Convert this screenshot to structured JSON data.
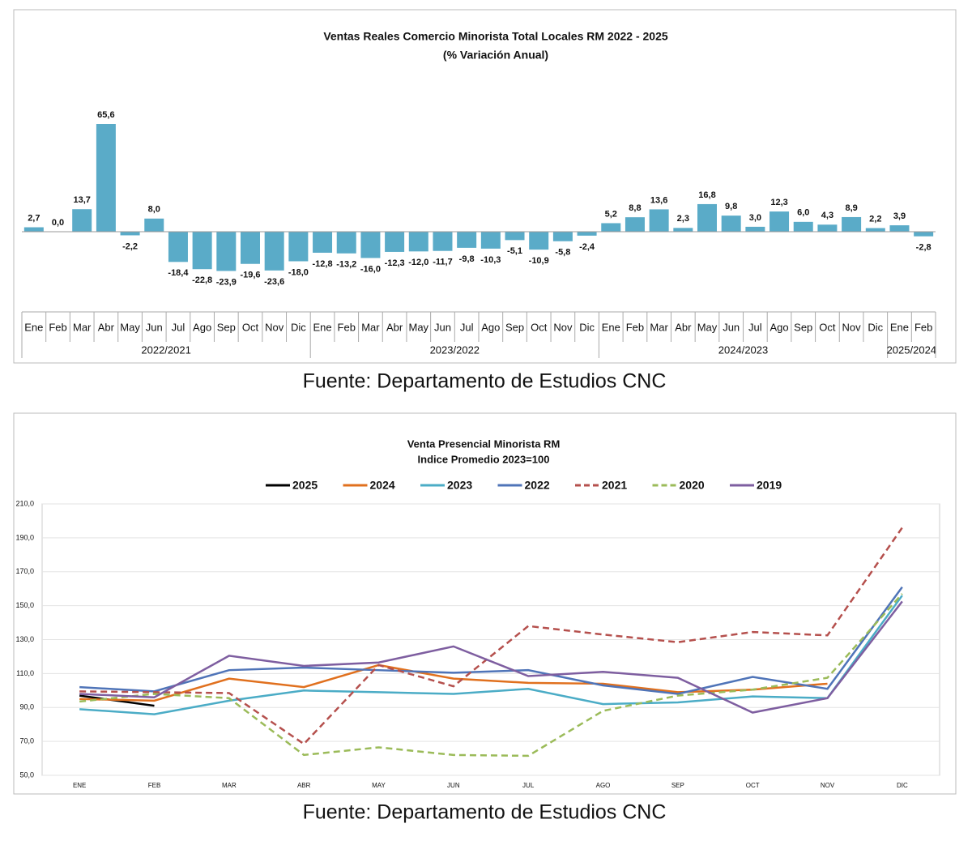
{
  "chart_data": [
    {
      "type": "bar",
      "title": "Ventas Reales Comercio Minorista  Total Locales RM 2022 - 2025",
      "subtitle": "(% Variación Anual)",
      "color": "#5aabc8",
      "groups": [
        {
          "label": "2022/2021",
          "categories": [
            "Ene",
            "Feb",
            "Mar",
            "Abr",
            "May",
            "Jun",
            "Jul",
            "Ago",
            "Sep",
            "Oct",
            "Nov",
            "Dic"
          ]
        },
        {
          "label": "2023/2022",
          "categories": [
            "Ene",
            "Feb",
            "Mar",
            "Abr",
            "May",
            "Jun",
            "Jul",
            "Ago",
            "Sep",
            "Oct",
            "Nov",
            "Dic"
          ]
        },
        {
          "label": "2024/2023",
          "categories": [
            "Ene",
            "Feb",
            "Mar",
            "Abr",
            "May",
            "Jun",
            "Jul",
            "Ago",
            "Sep",
            "Oct",
            "Nov",
            "Dic"
          ]
        },
        {
          "label": "2025/2024",
          "categories": [
            "Ene",
            "Feb"
          ]
        }
      ],
      "values": [
        2.7,
        0.0,
        13.7,
        65.6,
        -2.2,
        8.0,
        -18.4,
        -22.8,
        -23.9,
        -19.6,
        -23.6,
        -18.0,
        -12.8,
        -13.2,
        -16.0,
        -12.3,
        -12.0,
        -11.7,
        -9.8,
        -10.3,
        -5.1,
        -10.9,
        -5.8,
        -2.4,
        5.2,
        8.8,
        13.6,
        2.3,
        16.8,
        9.8,
        3.0,
        12.3,
        6.0,
        4.3,
        8.9,
        2.2,
        3.9,
        -2.8
      ],
      "value_labels": [
        "2,7",
        "0,0",
        "13,7",
        "65,6",
        "-2,2",
        "8,0",
        "-18,4",
        "-22,8",
        "-23,9",
        "-19,6",
        "-23,6",
        "-18,0",
        "-12,8",
        "-13,2",
        "-16,0",
        "-12,3",
        "-12,0",
        "-11,7",
        "-9,8",
        "-10,3",
        "-5,1",
        "-10,9",
        "-5,8",
        "-2,4",
        "5,2",
        "8,8",
        "13,6",
        "2,3",
        "16,8",
        "9,8",
        "3,0",
        "12,3",
        "6,0",
        "4,3",
        "8,9",
        "2,2",
        "3,9",
        "-2,8"
      ],
      "source": "Fuente: Departamento de Estudios CNC"
    },
    {
      "type": "line",
      "title": "Venta Presencial Minorista RM",
      "subtitle": "Indice Promedio 2023=100",
      "categories": [
        "ENE",
        "FEB",
        "MAR",
        "ABR",
        "MAY",
        "JUN",
        "JUL",
        "AGO",
        "SEP",
        "OCT",
        "NOV",
        "DIC"
      ],
      "ylim": [
        50,
        210
      ],
      "yticks": [
        {
          "value": 50,
          "label": "50,0"
        },
        {
          "value": 70,
          "label": "70,0"
        },
        {
          "value": 90,
          "label": "90,0"
        },
        {
          "value": 110,
          "label": "110,0"
        },
        {
          "value": 130,
          "label": "130,0"
        },
        {
          "value": 150,
          "label": "150,0"
        },
        {
          "value": 170,
          "label": "170,0"
        },
        {
          "value": 190,
          "label": "190,0"
        },
        {
          "value": 210,
          "label": "210,0"
        }
      ],
      "grid": true,
      "legend": "top",
      "series": [
        {
          "name": "2025",
          "color": "#000000",
          "dashed": false,
          "values": [
            97,
            91,
            null,
            null,
            null,
            null,
            null,
            null,
            null,
            null,
            null,
            null
          ]
        },
        {
          "name": "2024",
          "color": "#e0701e",
          "dashed": false,
          "values": [
            95,
            94,
            107,
            102,
            115,
            107,
            104.5,
            104,
            99,
            100.5,
            104,
            null
          ]
        },
        {
          "name": "2023",
          "color": "#4bacc6",
          "dashed": false,
          "values": [
            89,
            86,
            94,
            100,
            99,
            98,
            101,
            92,
            93,
            96.5,
            95.5,
            156
          ]
        },
        {
          "name": "2022",
          "color": "#4f74b8",
          "dashed": false,
          "values": [
            102,
            99.5,
            112,
            113.5,
            112,
            110.5,
            112,
            103,
            98,
            108,
            101,
            161
          ]
        },
        {
          "name": "2021",
          "color": "#b5504d",
          "dashed": true,
          "values": [
            99.5,
            99,
            98.5,
            68.5,
            115,
            102.5,
            138,
            133,
            128.5,
            134.5,
            132.5,
            196
          ]
        },
        {
          "name": "2020",
          "color": "#9bbb59",
          "dashed": true,
          "values": [
            93.5,
            98,
            95.5,
            62,
            66.5,
            62,
            61.5,
            88,
            97,
            100.5,
            107.5,
            157
          ]
        },
        {
          "name": "2019",
          "color": "#7e5ea0",
          "dashed": false,
          "values": [
            98,
            96,
            120.5,
            114.5,
            116.5,
            126,
            108.5,
            111,
            107.5,
            87,
            95.5,
            152.5
          ]
        }
      ],
      "source": "Fuente: Departamento de Estudios CNC"
    }
  ]
}
